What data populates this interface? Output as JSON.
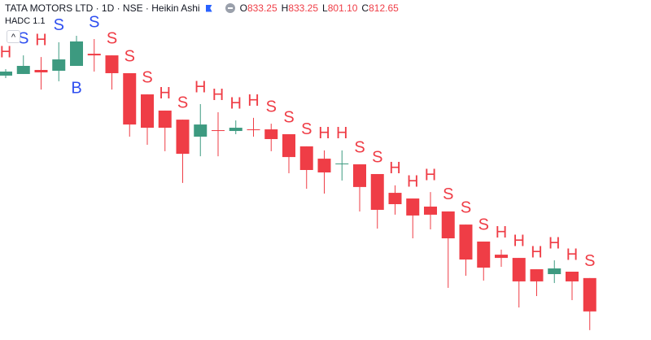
{
  "header": {
    "title": "TATA MOTORS LTD · 1D · NSE · Heikin Ashi",
    "ohlc": [
      {
        "label": "O",
        "value": "833.25"
      },
      {
        "label": "H",
        "value": "833.25"
      },
      {
        "label": "L",
        "value": "801.10"
      },
      {
        "label": "C",
        "value": "812.65"
      }
    ],
    "indicator": "HADC 1.1",
    "collapse": "^"
  },
  "chart_data": {
    "type": "candlestick",
    "ylim": [
      795,
      1005
    ],
    "up_color": "#3d9a80",
    "down_color": "#ef3d46",
    "open": [
      958.3,
      959.3,
      961.8,
      961.3,
      964.3,
      971.8,
      970.8,
      959.8,
      946.7,
      936.7,
      931.1,
      920.6,
      924.6,
      924.1,
      925.1,
      925.1,
      922.1,
      914.6,
      907.0,
      903.5,
      903.5,
      897.5,
      885.9,
      882.4,
      877.4,
      874.4,
      866.3,
      855.8,
      847.7,
      845.7,
      838.7,
      835.7,
      837.2,
      833.25
    ],
    "high": [
      962.3,
      970.8,
      969.8,
      978.9,
      982.9,
      980.9,
      970.8,
      959.8,
      946.7,
      936.7,
      931.1,
      940.7,
      935.7,
      930.6,
      932.2,
      928.6,
      922.1,
      914.6,
      912.1,
      912.1,
      903.5,
      897.5,
      890.5,
      882.4,
      886.4,
      874.4,
      866.3,
      855.8,
      850.8,
      845.7,
      838.7,
      844.2,
      837.2,
      833.25
    ],
    "low": [
      956.8,
      959.3,
      949.7,
      954.8,
      964.3,
      960.8,
      949.7,
      920.6,
      915.6,
      911.6,
      892.0,
      908.5,
      908.5,
      922.1,
      920.6,
      911.6,
      898.0,
      888.4,
      885.4,
      893.5,
      874.4,
      863.8,
      872.4,
      857.8,
      863.3,
      827.2,
      834.7,
      831.7,
      840.2,
      815.1,
      822.1,
      830.2,
      819.6,
      801.1
    ],
    "close": [
      960.8,
      964.3,
      960.3,
      968.3,
      979.4,
      970.8,
      959.8,
      928.1,
      926.1,
      926.1,
      910.0,
      928.1,
      924.1,
      926.1,
      924.6,
      919.1,
      908.0,
      900.0,
      898.5,
      904.0,
      889.5,
      875.4,
      878.9,
      871.9,
      872.4,
      857.8,
      844.7,
      839.7,
      845.7,
      831.2,
      831.2,
      839.2,
      831.2,
      812.65
    ],
    "signals": [
      {
        "label": "H",
        "color": "#ef3d46"
      },
      {
        "label": "S",
        "color": "#2f4ff0"
      },
      {
        "label": "H",
        "color": "#ef3d46"
      },
      {
        "label": "S",
        "color": "#2f4ff0"
      },
      {
        "label": "B",
        "color": "#2f4ff0",
        "position": "below"
      },
      {
        "label": "S",
        "color": "#2f4ff0"
      },
      {
        "label": "S",
        "color": "#ef3d46"
      },
      {
        "label": "S",
        "color": "#ef3d46"
      },
      {
        "label": "S",
        "color": "#ef3d46"
      },
      {
        "label": "H",
        "color": "#ef3d46"
      },
      {
        "label": "S",
        "color": "#ef3d46"
      },
      {
        "label": "H",
        "color": "#ef3d46"
      },
      {
        "label": "H",
        "color": "#ef3d46"
      },
      {
        "label": "H",
        "color": "#ef3d46"
      },
      {
        "label": "H",
        "color": "#ef3d46"
      },
      {
        "label": "S",
        "color": "#ef3d46"
      },
      {
        "label": "S",
        "color": "#ef3d46"
      },
      {
        "label": "S",
        "color": "#ef3d46"
      },
      {
        "label": "H",
        "color": "#ef3d46"
      },
      {
        "label": "H",
        "color": "#ef3d46"
      },
      {
        "label": "S",
        "color": "#ef3d46"
      },
      {
        "label": "S",
        "color": "#ef3d46"
      },
      {
        "label": "H",
        "color": "#ef3d46"
      },
      {
        "label": "H",
        "color": "#ef3d46"
      },
      {
        "label": "H",
        "color": "#ef3d46"
      },
      {
        "label": "S",
        "color": "#ef3d46"
      },
      {
        "label": "S",
        "color": "#ef3d46"
      },
      {
        "label": "S",
        "color": "#ef3d46"
      },
      {
        "label": "H",
        "color": "#ef3d46"
      },
      {
        "label": "H",
        "color": "#ef3d46"
      },
      {
        "label": "H",
        "color": "#ef3d46"
      },
      {
        "label": "H",
        "color": "#ef3d46"
      },
      {
        "label": "H",
        "color": "#ef3d46"
      },
      {
        "label": "S",
        "color": "#ef3d46"
      }
    ]
  }
}
